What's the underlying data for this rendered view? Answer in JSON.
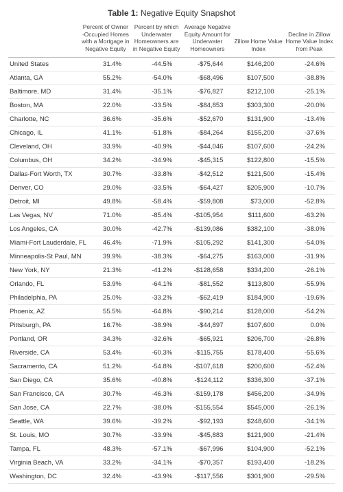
{
  "title_prefix": "Table 1:",
  "title_suffix": " Negative Equity Snapshot",
  "columns": [
    "",
    "Percent of Owner\n-Occupied Homes\nwith a Mortgage\nin Negative Equity",
    "Percent by which\nUnderwater\nHomeowners are\nin Negative Equity",
    "Average Negative\nEquity Amount for\nUnderwater\nHomeowners",
    "Zillow Home\nValue Index",
    "Decline in Zillow\nHome Value\nIndex from Peak"
  ],
  "rows": [
    [
      "United States",
      "31.4%",
      "-44.5%",
      "-$75,644",
      "$146,200",
      "-24.6%"
    ],
    [
      "Atlanta, GA",
      "55.2%",
      "-54.0%",
      "-$68,496",
      "$107,500",
      "-38.8%"
    ],
    [
      "Baltimore, MD",
      "31.4%",
      "-35.1%",
      "-$76,827",
      "$212,100",
      "-25.1%"
    ],
    [
      "Boston, MA",
      "22.0%",
      "-33.5%",
      "-$84,853",
      "$303,300",
      "-20.0%"
    ],
    [
      "Charlotte, NC",
      "36.6%",
      "-35.6%",
      "-$52,670",
      "$131,900",
      "-13.4%"
    ],
    [
      "Chicago, IL",
      "41.1%",
      "-51.8%",
      "-$84,264",
      "$155,200",
      "-37.6%"
    ],
    [
      "Cleveland, OH",
      "33.9%",
      "-40.9%",
      "-$44,046",
      "$107,600",
      "-24.2%"
    ],
    [
      "Columbus, OH",
      "34.2%",
      "-34.9%",
      "-$45,315",
      "$122,800",
      "-15.5%"
    ],
    [
      "Dallas-Fort Worth, TX",
      "30.7%",
      "-33.8%",
      "-$42,512",
      "$121,500",
      "-15.4%"
    ],
    [
      "Denver, CO",
      "29.0%",
      "-33.5%",
      "-$64,427",
      "$205,900",
      "-10.7%"
    ],
    [
      "Detroit, MI",
      "49.8%",
      "-58.4%",
      "-$59,808",
      "$73,000",
      "-52.8%"
    ],
    [
      "Las Vegas, NV",
      "71.0%",
      "-85.4%",
      "-$105,954",
      "$111,600",
      "-63.2%"
    ],
    [
      "Los Angeles, CA",
      "30.0%",
      "-42.7%",
      "-$139,086",
      "$382,100",
      "-38.0%"
    ],
    [
      "Miami-Fort Lauderdale, FL",
      "46.4%",
      "-71.9%",
      "-$105,292",
      "$141,300",
      "-54.0%"
    ],
    [
      "Minneapolis-St Paul, MN",
      "39.9%",
      "-38.3%",
      "-$64,275",
      "$163,000",
      "-31.9%"
    ],
    [
      "New York, NY",
      "21.3%",
      "-41.2%",
      "-$128,658",
      "$334,200",
      "-26.1%"
    ],
    [
      "Orlando, FL",
      "53.9%",
      "-64.1%",
      "-$81,552",
      "$113,800",
      "-55.9%"
    ],
    [
      "Philadelphia, PA",
      "25.0%",
      "-33.2%",
      "-$62,419",
      "$184,900",
      "-19.6%"
    ],
    [
      "Phoenix, AZ",
      "55.5%",
      "-64.8%",
      "-$90,214",
      "$128,000",
      "-54.2%"
    ],
    [
      "Pittsburgh, PA",
      "16.7%",
      "-38.9%",
      "-$44,897",
      "$107,600",
      "0.0%"
    ],
    [
      "Portland, OR",
      "34.3%",
      "-32.6%",
      "-$65,921",
      "$206,700",
      "-26.8%"
    ],
    [
      "Riverside, CA",
      "53.4%",
      "-60.3%",
      "-$115,755",
      "$178,400",
      "-55.6%"
    ],
    [
      "Sacramento, CA",
      "51.2%",
      "-54.8%",
      "-$107,618",
      "$200,600",
      "-52.4%"
    ],
    [
      "San Diego, CA",
      "35.6%",
      "-40.8%",
      "-$124,112",
      "$336,300",
      "-37.1%"
    ],
    [
      "San Francisco, CA",
      "30.7%",
      "-46.3%",
      "-$159,178",
      "$456,200",
      "-34.9%"
    ],
    [
      "San Jose, CA",
      "22.7%",
      "-38.0%",
      "-$155,554",
      "$545,000",
      "-26.1%"
    ],
    [
      "Seattle, WA",
      "39.6%",
      "-39.2%",
      "-$92,193",
      "$248,600",
      "-34.1%"
    ],
    [
      "St. Louis, MO",
      "30.7%",
      "-33.9%",
      "-$45,883",
      "$121,900",
      "-21.4%"
    ],
    [
      "Tampa, FL",
      "48.3%",
      "-57.1%",
      "-$67,996",
      "$104,900",
      "-52.1%"
    ],
    [
      "Virginia Beach, VA",
      "33.2%",
      "-34.1%",
      "-$70,357",
      "$193,400",
      "-18.2%"
    ],
    [
      "Washington, DC",
      "32.4%",
      "-43.9%",
      "-$117,556",
      "$301,900",
      "-29.5%"
    ]
  ]
}
